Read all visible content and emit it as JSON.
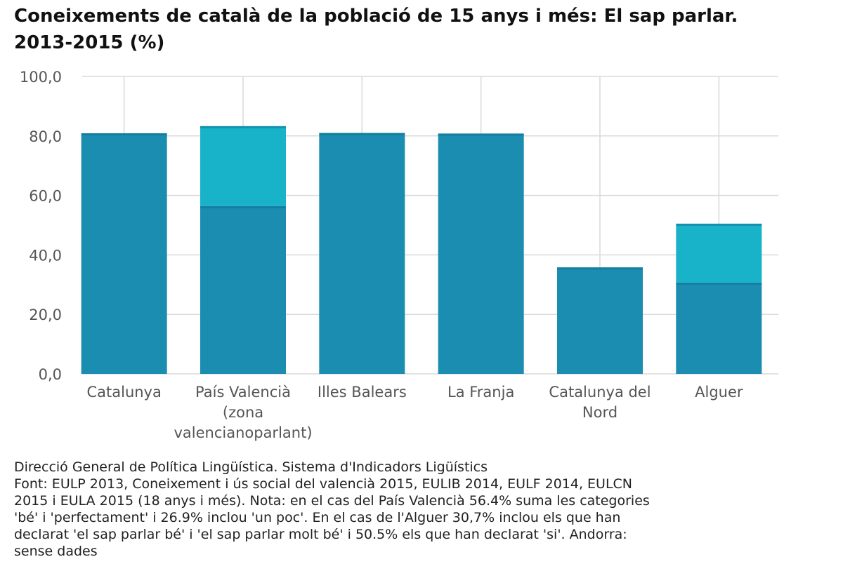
{
  "chart_data": {
    "type": "bar",
    "title_line1": "Coneixements de català de la població de 15 anys i més: El sap parlar.",
    "title_line2": "2013-2015 (%)",
    "categories": [
      [
        "Catalunya"
      ],
      [
        "País Valencià",
        "(zona",
        "valencianoparlant)"
      ],
      [
        "Illes Balears"
      ],
      [
        "La Franja"
      ],
      [
        "Catalunya del",
        "Nord"
      ],
      [
        "Alguer"
      ]
    ],
    "series": [
      {
        "values": [
          80.9,
          56.4,
          81.0,
          80.8,
          35.8,
          30.7
        ],
        "color": "#1a8db0"
      },
      {
        "values": [
          0,
          26.9,
          0,
          0,
          0,
          19.8
        ],
        "color": "#19b3c9"
      }
    ],
    "stacked": true,
    "ylim": [
      0,
      100
    ],
    "yticks": [
      "0,0",
      "20,0",
      "40,0",
      "60,0",
      "80,0",
      "100,0"
    ],
    "grid": true,
    "grid_color": "#d9d9d9"
  },
  "footnote": {
    "source_line": "Direcció General de Política Lingüística. Sistema d'Indicadors Ligüístics",
    "note_lines": [
      "Font: EULP 2013, Coneixement i ús social del valencià 2015, EULIB 2014, EULF 2014, EULCN",
      "2015 i EULA 2015 (18 anys i més). Nota: en el cas del País Valencià 56.4% suma les categories",
      "'bé' i 'perfectament' i 26.9% inclou 'un poc'. En el cas de l'Alguer 30,7% inclou els que han",
      "declarat 'el sap parlar bé' i 'el sap parlar molt bé' i 50.5% els que han declarat 'si'. Andorra:",
      "sense dades"
    ]
  }
}
